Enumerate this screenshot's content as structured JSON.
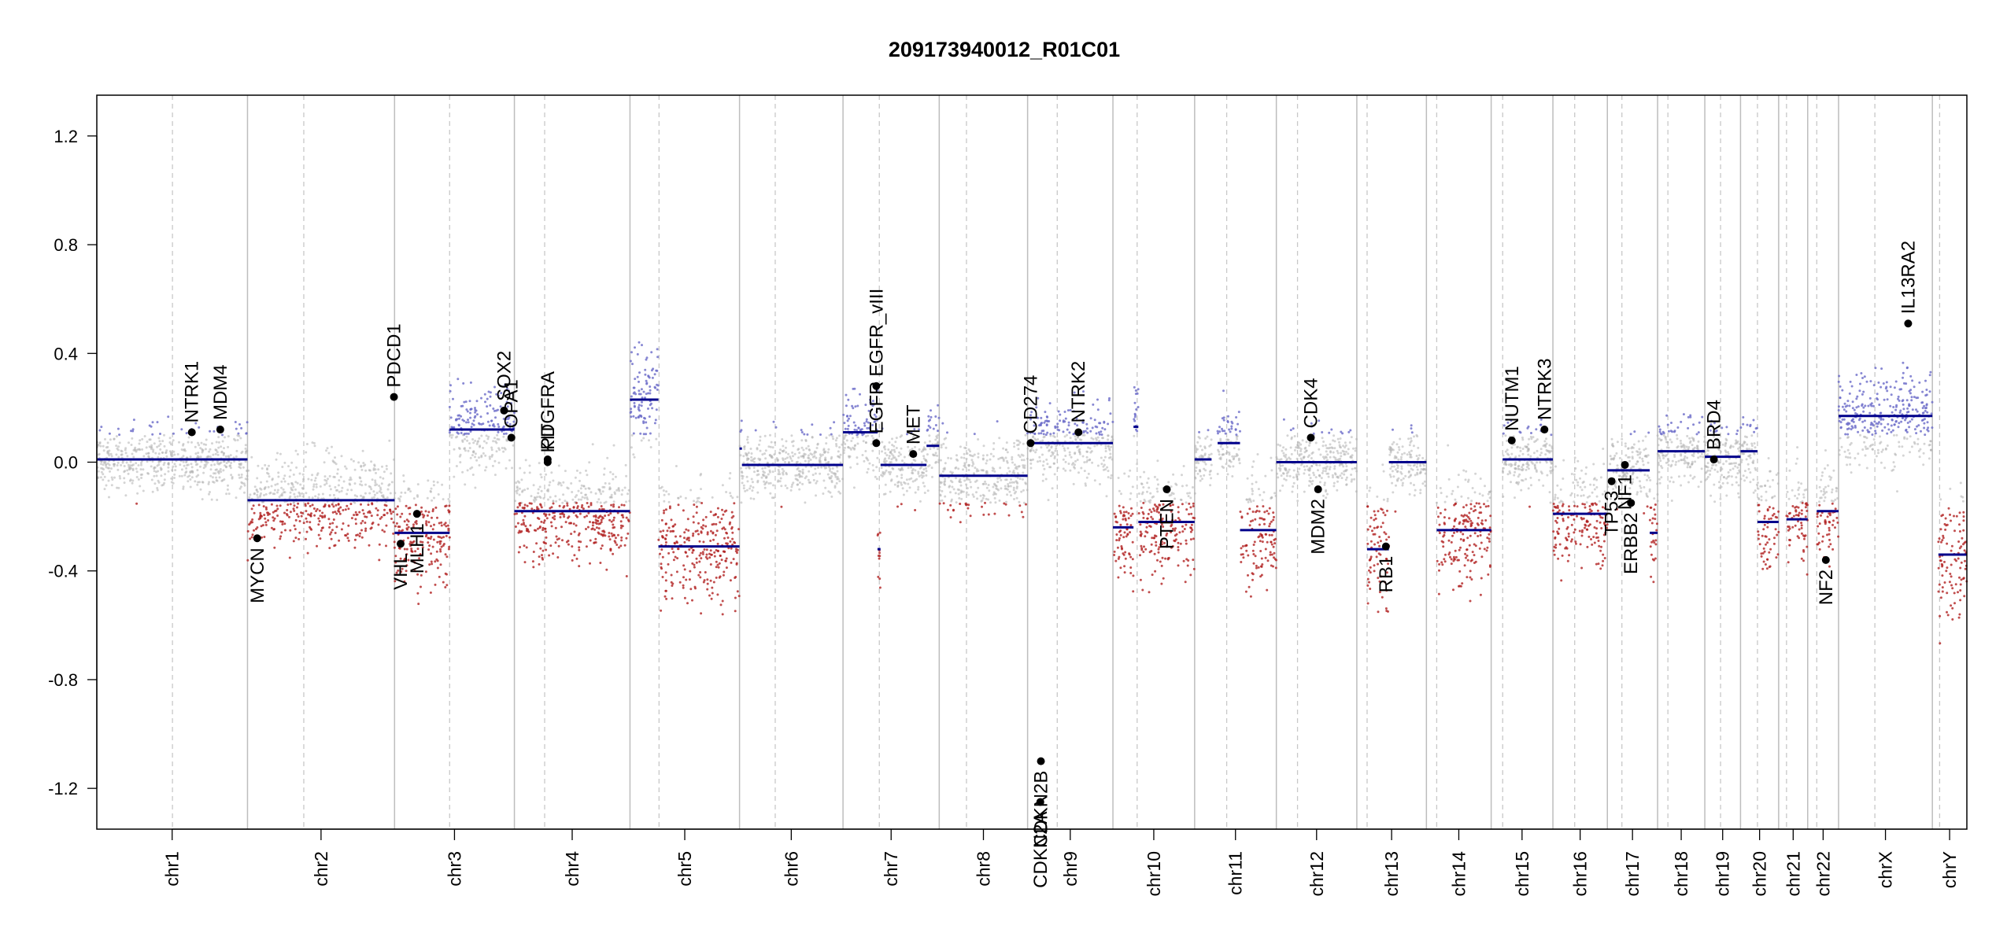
{
  "chart_data": {
    "type": "scatter",
    "title": "209173940012_R01C01",
    "xlabel": "",
    "ylabel": "",
    "ylim": [
      -1.35,
      1.35
    ],
    "yticks": [
      1.2,
      0.8,
      0.4,
      0.0,
      -0.4,
      -0.8,
      -1.2
    ],
    "ytick_labels": [
      "1.2",
      "0.8",
      "0.4",
      "0.0",
      "-0.4",
      "-0.8",
      "-1.2"
    ],
    "grid": false,
    "colors": {
      "segment": "#00008b",
      "gain": "#6a6ac8",
      "loss": "#b22222",
      "neutral": "#b0b0b0",
      "gene_point": "#000000",
      "chr_boundary": "#bdbdbd",
      "centromere": "#c8c8c8"
    },
    "chromosomes": [
      {
        "name": "chr1",
        "length": 249,
        "centromere": 125
      },
      {
        "name": "chr2",
        "length": 243,
        "centromere": 93
      },
      {
        "name": "chr3",
        "length": 198,
        "centromere": 91
      },
      {
        "name": "chr4",
        "length": 191,
        "centromere": 50
      },
      {
        "name": "chr5",
        "length": 181,
        "centromere": 48
      },
      {
        "name": "chr6",
        "length": 171,
        "centromere": 59
      },
      {
        "name": "chr7",
        "length": 159,
        "centromere": 60
      },
      {
        "name": "chr8",
        "length": 146,
        "centromere": 45
      },
      {
        "name": "chr9",
        "length": 141,
        "centromere": 49
      },
      {
        "name": "chr10",
        "length": 135,
        "centromere": 40
      },
      {
        "name": "chr11",
        "length": 135,
        "centromere": 53
      },
      {
        "name": "chr12",
        "length": 133,
        "centromere": 35
      },
      {
        "name": "chr13",
        "length": 115,
        "centromere": 17
      },
      {
        "name": "chr14",
        "length": 107,
        "centromere": 17
      },
      {
        "name": "chr15",
        "length": 102,
        "centromere": 19
      },
      {
        "name": "chr16",
        "length": 90,
        "centromere": 36
      },
      {
        "name": "chr17",
        "length": 83,
        "centromere": 24
      },
      {
        "name": "chr18",
        "length": 78,
        "centromere": 17
      },
      {
        "name": "chr19",
        "length": 59,
        "centromere": 26
      },
      {
        "name": "chr20",
        "length": 63,
        "centromere": 28
      },
      {
        "name": "chr21",
        "length": 48,
        "centromere": 13
      },
      {
        "name": "chr22",
        "length": 51,
        "centromere": 15
      },
      {
        "name": "chrX",
        "length": 155,
        "centromere": 60
      },
      {
        "name": "chrY",
        "length": 57,
        "centromere": 12
      }
    ],
    "segments": [
      {
        "chr": "chr1",
        "start": 0,
        "end": 249,
        "value": 0.01
      },
      {
        "chr": "chr2",
        "start": 0,
        "end": 243,
        "value": -0.14
      },
      {
        "chr": "chr3",
        "start": 0,
        "end": 91,
        "value": -0.26
      },
      {
        "chr": "chr3",
        "start": 91,
        "end": 198,
        "value": 0.12
      },
      {
        "chr": "chr4",
        "start": 0,
        "end": 191,
        "value": -0.18
      },
      {
        "chr": "chr5",
        "start": 0,
        "end": 47,
        "value": 0.23
      },
      {
        "chr": "chr5",
        "start": 47,
        "end": 181,
        "value": -0.31
      },
      {
        "chr": "chr6",
        "start": 0,
        "end": 4,
        "value": 0.05
      },
      {
        "chr": "chr6",
        "start": 4,
        "end": 171,
        "value": -0.01
      },
      {
        "chr": "chr7",
        "start": 0,
        "end": 57,
        "value": 0.11
      },
      {
        "chr": "chr7",
        "start": 57,
        "end": 62,
        "value": -0.32
      },
      {
        "chr": "chr7",
        "start": 62,
        "end": 138,
        "value": -0.01
      },
      {
        "chr": "chr7",
        "start": 138,
        "end": 159,
        "value": 0.06
      },
      {
        "chr": "chr8",
        "start": 0,
        "end": 146,
        "value": -0.05
      },
      {
        "chr": "chr9",
        "start": 0,
        "end": 141,
        "value": 0.07
      },
      {
        "chr": "chr10",
        "start": 0,
        "end": 34,
        "value": -0.24
      },
      {
        "chr": "chr10",
        "start": 34,
        "end": 42,
        "value": 0.13
      },
      {
        "chr": "chr10",
        "start": 42,
        "end": 135,
        "value": -0.22
      },
      {
        "chr": "chr11",
        "start": 0,
        "end": 28,
        "value": 0.01
      },
      {
        "chr": "chr11",
        "start": 38,
        "end": 75,
        "value": 0.07
      },
      {
        "chr": "chr11",
        "start": 75,
        "end": 135,
        "value": -0.25
      },
      {
        "chr": "chr12",
        "start": 0,
        "end": 133,
        "value": 0.0
      },
      {
        "chr": "chr13",
        "start": 17,
        "end": 53,
        "value": -0.32
      },
      {
        "chr": "chr13",
        "start": 53,
        "end": 115,
        "value": 0.0
      },
      {
        "chr": "chr14",
        "start": 17,
        "end": 107,
        "value": -0.25
      },
      {
        "chr": "chr15",
        "start": 19,
        "end": 102,
        "value": 0.01
      },
      {
        "chr": "chr16",
        "start": 0,
        "end": 90,
        "value": -0.19
      },
      {
        "chr": "chr17",
        "start": 0,
        "end": 70,
        "value": -0.03
      },
      {
        "chr": "chr17",
        "start": 70,
        "end": 83,
        "value": -0.26
      },
      {
        "chr": "chr18",
        "start": 0,
        "end": 78,
        "value": 0.04
      },
      {
        "chr": "chr19",
        "start": 0,
        "end": 59,
        "value": 0.02
      },
      {
        "chr": "chr20",
        "start": 0,
        "end": 28,
        "value": 0.04
      },
      {
        "chr": "chr20",
        "start": 28,
        "end": 63,
        "value": -0.22
      },
      {
        "chr": "chr21",
        "start": 13,
        "end": 48,
        "value": -0.21
      },
      {
        "chr": "chr22",
        "start": 15,
        "end": 51,
        "value": -0.18
      },
      {
        "chr": "chrX",
        "start": 0,
        "end": 155,
        "value": 0.17
      },
      {
        "chr": "chrY",
        "start": 10,
        "end": 57,
        "value": -0.34
      }
    ],
    "genes": [
      {
        "name": "NTRK1",
        "chr": "chr1",
        "pos": 157,
        "value": 0.11
      },
      {
        "name": "MDM4",
        "chr": "chr1",
        "pos": 204,
        "value": 0.12
      },
      {
        "name": "MYCN",
        "chr": "chr2",
        "pos": 16,
        "value": -0.28
      },
      {
        "name": "PDCD1",
        "chr": "chr2",
        "pos": 242,
        "value": 0.24
      },
      {
        "name": "VHL",
        "chr": "chr3",
        "pos": 10,
        "value": -0.3
      },
      {
        "name": "MLH1",
        "chr": "chr3",
        "pos": 37,
        "value": -0.19
      },
      {
        "name": "SOX2",
        "chr": "chr3",
        "pos": 181,
        "value": 0.19
      },
      {
        "name": "OPA1",
        "chr": "chr3",
        "pos": 193,
        "value": 0.09
      },
      {
        "name": "KIT",
        "chr": "chr4",
        "pos": 55,
        "value": 0.0
      },
      {
        "name": "PDGFRA",
        "chr": "chr4",
        "pos": 55,
        "value": 0.01
      },
      {
        "name": "EGFR",
        "chr": "chr7",
        "pos": 55,
        "value": 0.07
      },
      {
        "name": "EGFR_vIII",
        "chr": "chr7",
        "pos": 55,
        "value": 0.28
      },
      {
        "name": "MET",
        "chr": "chr7",
        "pos": 116,
        "value": 0.03
      },
      {
        "name": "CD274",
        "chr": "chr9",
        "pos": 5,
        "value": 0.07
      },
      {
        "name": "CDKN2A",
        "chr": "chr9",
        "pos": 21,
        "value": -1.25
      },
      {
        "name": "CDKN2B",
        "chr": "chr9",
        "pos": 22,
        "value": -1.1
      },
      {
        "name": "NTRK2",
        "chr": "chr9",
        "pos": 84,
        "value": 0.11
      },
      {
        "name": "PTEN",
        "chr": "chr10",
        "pos": 89,
        "value": -0.1
      },
      {
        "name": "CDK4",
        "chr": "chr12",
        "pos": 57,
        "value": 0.09
      },
      {
        "name": "MDM2",
        "chr": "chr12",
        "pos": 69,
        "value": -0.1
      },
      {
        "name": "RB1",
        "chr": "chr13",
        "pos": 48,
        "value": -0.31
      },
      {
        "name": "NUTM1",
        "chr": "chr15",
        "pos": 34,
        "value": 0.08
      },
      {
        "name": "NTRK3",
        "chr": "chr15",
        "pos": 88,
        "value": 0.12
      },
      {
        "name": "TP53",
        "chr": "chr17",
        "pos": 7,
        "value": -0.07
      },
      {
        "name": "NF1",
        "chr": "chr17",
        "pos": 29,
        "value": -0.01
      },
      {
        "name": "ERBB2",
        "chr": "chr17",
        "pos": 39,
        "value": -0.15
      },
      {
        "name": "BRD4",
        "chr": "chr19",
        "pos": 15,
        "value": 0.01
      },
      {
        "name": "NF2",
        "chr": "chr22",
        "pos": 30,
        "value": -0.36
      },
      {
        "name": "IL13RA2",
        "chr": "chrX",
        "pos": 115,
        "value": 0.51
      }
    ]
  }
}
